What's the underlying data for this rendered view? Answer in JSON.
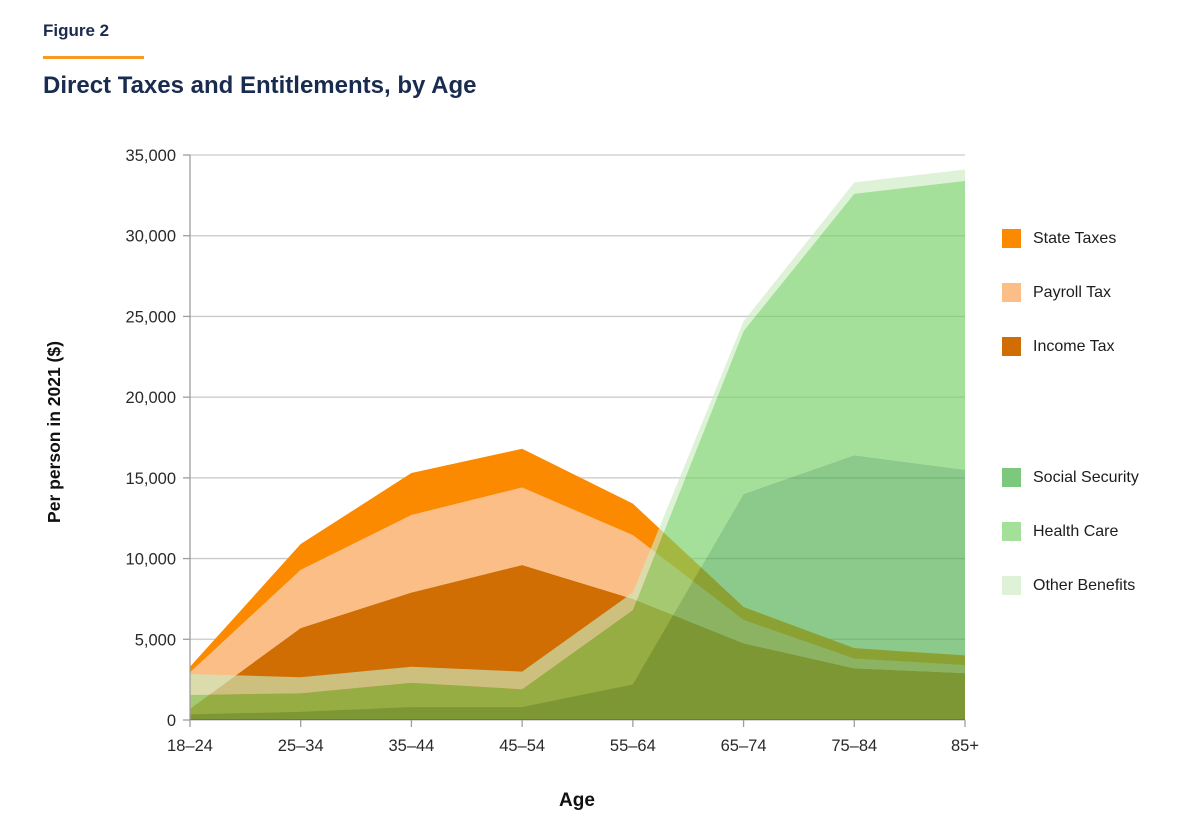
{
  "figure_label": "Figure 2",
  "title": "Direct Taxes and Entitlements, by Age",
  "colors": {
    "title_navy": "#1A2B50",
    "accent_orange": "#F89B1E",
    "grid": "#c9c9c9",
    "axis": "#9e9e9e",
    "tick_text": "#2a2a2a"
  },
  "chart_data": {
    "type": "area",
    "stacked": true,
    "title": "Direct Taxes and Entitlements, by Age",
    "xlabel": "Age",
    "ylabel": "Per person in 2021 ($)",
    "categories": [
      "18–24",
      "25–34",
      "35–44",
      "45–54",
      "55–64",
      "65–74",
      "75–84",
      "85+"
    ],
    "ylim": [
      0,
      35000
    ],
    "ytick_step": 5000,
    "ytick_labels": [
      "0",
      "5,000",
      "10,000",
      "15,000",
      "20,000",
      "25,000",
      "30,000",
      "35,000"
    ],
    "grid": "horizontal",
    "legend_position": "right",
    "series": [
      {
        "name": "Income Tax",
        "group": "taxes",
        "color": "#D06E04",
        "fill": "#D06E04",
        "opacity": 1,
        "values": [
          700,
          5700,
          7900,
          9600,
          7500,
          4750,
          3200,
          2900
        ]
      },
      {
        "name": "Payroll Tax",
        "group": "taxes",
        "color": "#FBBE86",
        "fill": "#FBBE86",
        "opacity": 1,
        "values": [
          2250,
          3600,
          4800,
          4800,
          3950,
          1450,
          600,
          500
        ]
      },
      {
        "name": "State Taxes",
        "group": "taxes",
        "color": "#FB8A00",
        "fill": "#FB8A00",
        "opacity": 1,
        "values": [
          350,
          1600,
          2600,
          2400,
          1950,
          800,
          650,
          600
        ]
      },
      {
        "name": "Social Security",
        "group": "entitlements",
        "color": "#7CC87C",
        "fill": "#4EAE4E",
        "opacity": 0.65,
        "values": [
          350,
          500,
          800,
          800,
          2200,
          14000,
          16400,
          15500
        ]
      },
      {
        "name": "Health Care",
        "group": "entitlements",
        "color": "#A5E09A",
        "fill": "#75D064",
        "opacity": 0.65,
        "values": [
          1200,
          1150,
          1500,
          1100,
          4600,
          10100,
          16200,
          17900
        ]
      },
      {
        "name": "Other Benefits",
        "group": "entitlements",
        "color": "#DDF2D6",
        "fill": "#CBEBC0",
        "opacity": 0.65,
        "values": [
          1300,
          1000,
          1000,
          1100,
          1100,
          600,
          700,
          700
        ]
      }
    ]
  },
  "legend": {
    "taxes": [
      {
        "label": "State Taxes",
        "color": "#FB8A00"
      },
      {
        "label": "Payroll Tax",
        "color": "#FBBE86"
      },
      {
        "label": "Income Tax",
        "color": "#D06E04"
      }
    ],
    "entitlements": [
      {
        "label": "Social Security",
        "color": "#7CC87C"
      },
      {
        "label": "Health Care",
        "color": "#A5E09A"
      },
      {
        "label": "Other Benefits",
        "color": "#DDF2D6"
      }
    ]
  }
}
